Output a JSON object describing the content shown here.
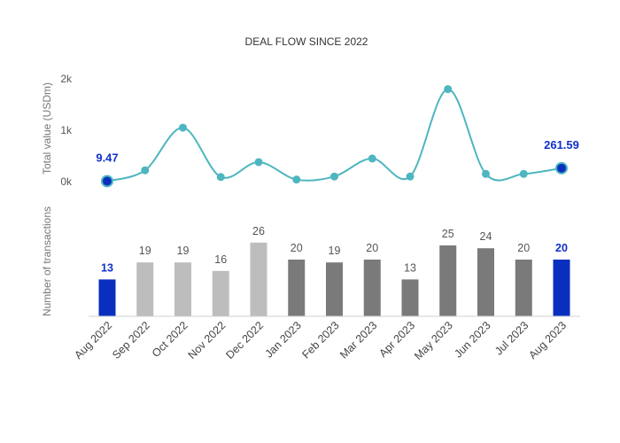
{
  "chart_data": {
    "title": "DEAL FLOW SINCE 2022",
    "categories": [
      "Aug 2022",
      "Sep 2022",
      "Oct 2022",
      "Nov 2022",
      "Dec 2022",
      "Jan 2023",
      "Feb 2023",
      "Mar 2023",
      "Apr 2023",
      "May 2023",
      "Jun 2023",
      "Jul 2023",
      "Aug 2023"
    ],
    "line": {
      "type": "line",
      "ylabel": "Total value (USDm)",
      "yticks": [
        "2k",
        "1k",
        "0k"
      ],
      "ylim": [
        0,
        2000
      ],
      "color": "#4db6c0",
      "highlight_color": "#0a2fbf",
      "values": [
        9.47,
        220,
        1050,
        90,
        380,
        40,
        100,
        450,
        100,
        1800,
        150,
        150,
        261.59
      ],
      "labels": [
        "9.47",
        "",
        "",
        "",
        "",
        "",
        "",
        "",
        "",
        "",
        "",
        "",
        "261.59"
      ],
      "highlight": [
        0,
        12
      ]
    },
    "bars": {
      "type": "bar",
      "ylabel": "Number of transactions",
      "values": [
        13,
        19,
        19,
        16,
        26,
        20,
        19,
        20,
        13,
        25,
        24,
        20,
        20
      ],
      "colors": [
        "#0a2fbf",
        "#bdbdbd",
        "#bdbdbd",
        "#bdbdbd",
        "#bdbdbd",
        "#7a7a7a",
        "#7a7a7a",
        "#7a7a7a",
        "#7a7a7a",
        "#7a7a7a",
        "#7a7a7a",
        "#7a7a7a",
        "#0a2fbf"
      ],
      "highlight": [
        0,
        12
      ]
    }
  }
}
